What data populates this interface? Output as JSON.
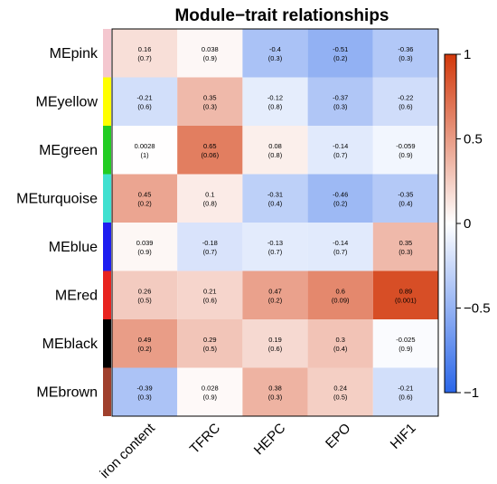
{
  "chart_data": {
    "type": "heatmap",
    "title": "Module−trait relationships",
    "rows": [
      {
        "name": "MEpink",
        "color": "#F4C7CF"
      },
      {
        "name": "MEyellow",
        "color": "#FFFF00"
      },
      {
        "name": "MEgreen",
        "color": "#22CC22"
      },
      {
        "name": "MEturquoise",
        "color": "#40E0D0"
      },
      {
        "name": "MEblue",
        "color": "#1E1EF0"
      },
      {
        "name": "MEred",
        "color": "#E8231F"
      },
      {
        "name": "MEblack",
        "color": "#000000"
      },
      {
        "name": "MEbrown",
        "color": "#A0402D"
      }
    ],
    "columns": [
      "iron content",
      "TFRC",
      "HEPC",
      "EPO",
      "HIF1"
    ],
    "values": [
      [
        0.16,
        0.038,
        -0.4,
        -0.51,
        -0.36
      ],
      [
        -0.21,
        0.35,
        -0.12,
        -0.37,
        -0.22
      ],
      [
        0.0028,
        0.65,
        0.08,
        -0.14,
        -0.059
      ],
      [
        0.45,
        0.1,
        -0.31,
        -0.46,
        -0.35
      ],
      [
        0.039,
        -0.18,
        -0.13,
        -0.14,
        0.35
      ],
      [
        0.26,
        0.21,
        0.47,
        0.6,
        0.89
      ],
      [
        0.49,
        0.29,
        0.19,
        0.3,
        -0.025
      ],
      [
        -0.39,
        0.028,
        0.38,
        0.24,
        -0.21
      ]
    ],
    "value_labels": [
      [
        "0.16",
        "0.038",
        "-0.4",
        "-0.51",
        "-0.36"
      ],
      [
        "-0.21",
        "0.35",
        "-0.12",
        "-0.37",
        "-0.22"
      ],
      [
        "0.0028",
        "0.65",
        "0.08",
        "-0.14",
        "-0.059"
      ],
      [
        "0.45",
        "0.1",
        "-0.31",
        "-0.46",
        "-0.35"
      ],
      [
        "0.039",
        "-0.18",
        "-0.13",
        "-0.14",
        "0.35"
      ],
      [
        "0.26",
        "0.21",
        "0.47",
        "0.6",
        "0.89"
      ],
      [
        "0.49",
        "0.29",
        "0.19",
        "0.3",
        "-0.025"
      ],
      [
        "-0.39",
        "0.028",
        "0.38",
        "0.24",
        "-0.21"
      ]
    ],
    "pvalue_labels": [
      [
        "(0.7)",
        "(0.9)",
        "(0.3)",
        "(0.2)",
        "(0.3)"
      ],
      [
        "(0.6)",
        "(0.3)",
        "(0.8)",
        "(0.3)",
        "(0.6)"
      ],
      [
        "(1)",
        "(0.06)",
        "(0.8)",
        "(0.7)",
        "(0.9)"
      ],
      [
        "(0.2)",
        "(0.8)",
        "(0.4)",
        "(0.2)",
        "(0.4)"
      ],
      [
        "(0.9)",
        "(0.7)",
        "(0.7)",
        "(0.7)",
        "(0.3)"
      ],
      [
        "(0.5)",
        "(0.6)",
        "(0.2)",
        "(0.09)",
        "(0.001)"
      ],
      [
        "(0.2)",
        "(0.5)",
        "(0.6)",
        "(0.4)",
        "(0.9)"
      ],
      [
        "(0.3)",
        "(0.9)",
        "(0.3)",
        "(0.5)",
        "(0.6)"
      ]
    ],
    "colorbar": {
      "range": [
        -1,
        1
      ],
      "ticks": [
        1,
        0.5,
        0,
        -0.5,
        -1
      ],
      "tick_labels": [
        "1",
        "0.5",
        "0",
        "−0.5",
        "−1"
      ],
      "low_color": "#2A66E8",
      "mid_color": "#FFFFFF",
      "high_color": "#D2380B"
    }
  }
}
